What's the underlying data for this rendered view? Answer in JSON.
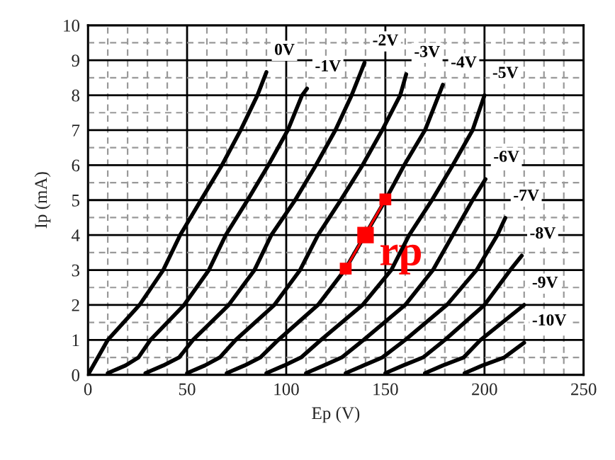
{
  "chart_data": {
    "type": "line",
    "xlabel": "Ep (V)",
    "ylabel": "Ip (mA)",
    "xlim": [
      0,
      250
    ],
    "ylim": [
      0,
      10
    ],
    "xticks": [
      0,
      50,
      100,
      150,
      200,
      250
    ],
    "yticks": [
      0,
      1,
      2,
      3,
      4,
      5,
      6,
      7,
      8,
      9,
      10
    ],
    "grid": true,
    "marker": "none",
    "line_style": "solid",
    "series": [
      {
        "name": "0V",
        "color": "#000000",
        "x": [
          0,
          5,
          10,
          18,
          26,
          38,
          46.5,
          57,
          67.6,
          77,
          85.5,
          90
        ],
        "values": [
          0,
          0.5,
          1,
          1.5,
          2,
          3,
          4,
          5,
          6,
          7,
          8,
          8.66
        ]
      },
      {
        "name": "-1V",
        "color": "#000000",
        "x": [
          10,
          19,
          25.5,
          31.5,
          48.5,
          61,
          69.5,
          80.5,
          91,
          100.8,
          108,
          110.5
        ],
        "values": [
          0.05,
          0.27,
          0.5,
          1,
          2,
          3,
          4,
          5,
          6,
          7,
          8,
          8.19
        ]
      },
      {
        "name": "-2V",
        "color": "#000000",
        "x": [
          29,
          38,
          46,
          53,
          71,
          84,
          92.5,
          104.5,
          115,
          124.8,
          133,
          139.5
        ],
        "values": [
          0.05,
          0.27,
          0.5,
          1,
          2,
          3,
          4,
          5,
          6,
          7,
          8,
          8.93
        ]
      },
      {
        "name": "-3V",
        "color": "#000000",
        "x": [
          50,
          59,
          66.5,
          74.5,
          94,
          107,
          116,
          127.5,
          138.5,
          148.4,
          157.5,
          160.5
        ],
        "values": [
          0.05,
          0.27,
          0.5,
          1,
          2,
          3,
          4,
          5,
          6,
          7,
          8,
          8.6
        ]
      },
      {
        "name": "-4V",
        "color": "#000000",
        "x": [
          70,
          79,
          87,
          96,
          116,
          129.5,
          150,
          159.5,
          170,
          179
        ],
        "values": [
          0.05,
          0.27,
          0.5,
          1,
          2,
          3,
          5,
          6,
          7,
          8.3
        ]
      },
      {
        "name": "-5V",
        "color": "#000000",
        "x": [
          90,
          99,
          107.5,
          117.5,
          138.5,
          153,
          162,
          173.5,
          184,
          194,
          200
        ],
        "values": [
          0.05,
          0.27,
          0.5,
          1,
          2,
          3,
          4,
          5,
          6,
          7,
          8
        ]
      },
      {
        "name": "-6V",
        "color": "#000000",
        "x": [
          110,
          119,
          128,
          139,
          160,
          174,
          184,
          194,
          200.5
        ],
        "values": [
          0.05,
          0.27,
          0.5,
          1,
          2,
          3,
          4,
          5,
          5.6
        ]
      },
      {
        "name": "-7V",
        "color": "#000000",
        "x": [
          130,
          139,
          148.5,
          160,
          181,
          196,
          206.5,
          210.5
        ],
        "values": [
          0.05,
          0.27,
          0.5,
          1,
          2,
          3,
          4,
          4.49
        ]
      },
      {
        "name": "-8V",
        "color": "#000000",
        "x": [
          150,
          159,
          169,
          180,
          200,
          213,
          218.8
        ],
        "values": [
          0.05,
          0.27,
          0.5,
          1,
          2,
          3,
          3.41
        ]
      },
      {
        "name": "-9V",
        "color": "#000000",
        "x": [
          170,
          179,
          189.5,
          198,
          220
        ],
        "values": [
          0.05,
          0.27,
          0.5,
          1,
          2
        ]
      },
      {
        "name": "-10V",
        "color": "#000000",
        "x": [
          190,
          199,
          210,
          220
        ],
        "values": [
          0.05,
          0.27,
          0.5,
          0.92
        ]
      },
      {
        "type": "line",
        "color": "#ff0000",
        "marker": "square",
        "x": [
          130,
          150
        ],
        "values": [
          3.04,
          5.02
        ]
      },
      {
        "type": "scatter",
        "color": "#ff0000",
        "marker": "square",
        "x": [
          140
        ],
        "values": [
          4.0
        ]
      }
    ],
    "annotations": [
      {
        "text": "rp",
        "x": 140,
        "y": 4
      }
    ]
  }
}
